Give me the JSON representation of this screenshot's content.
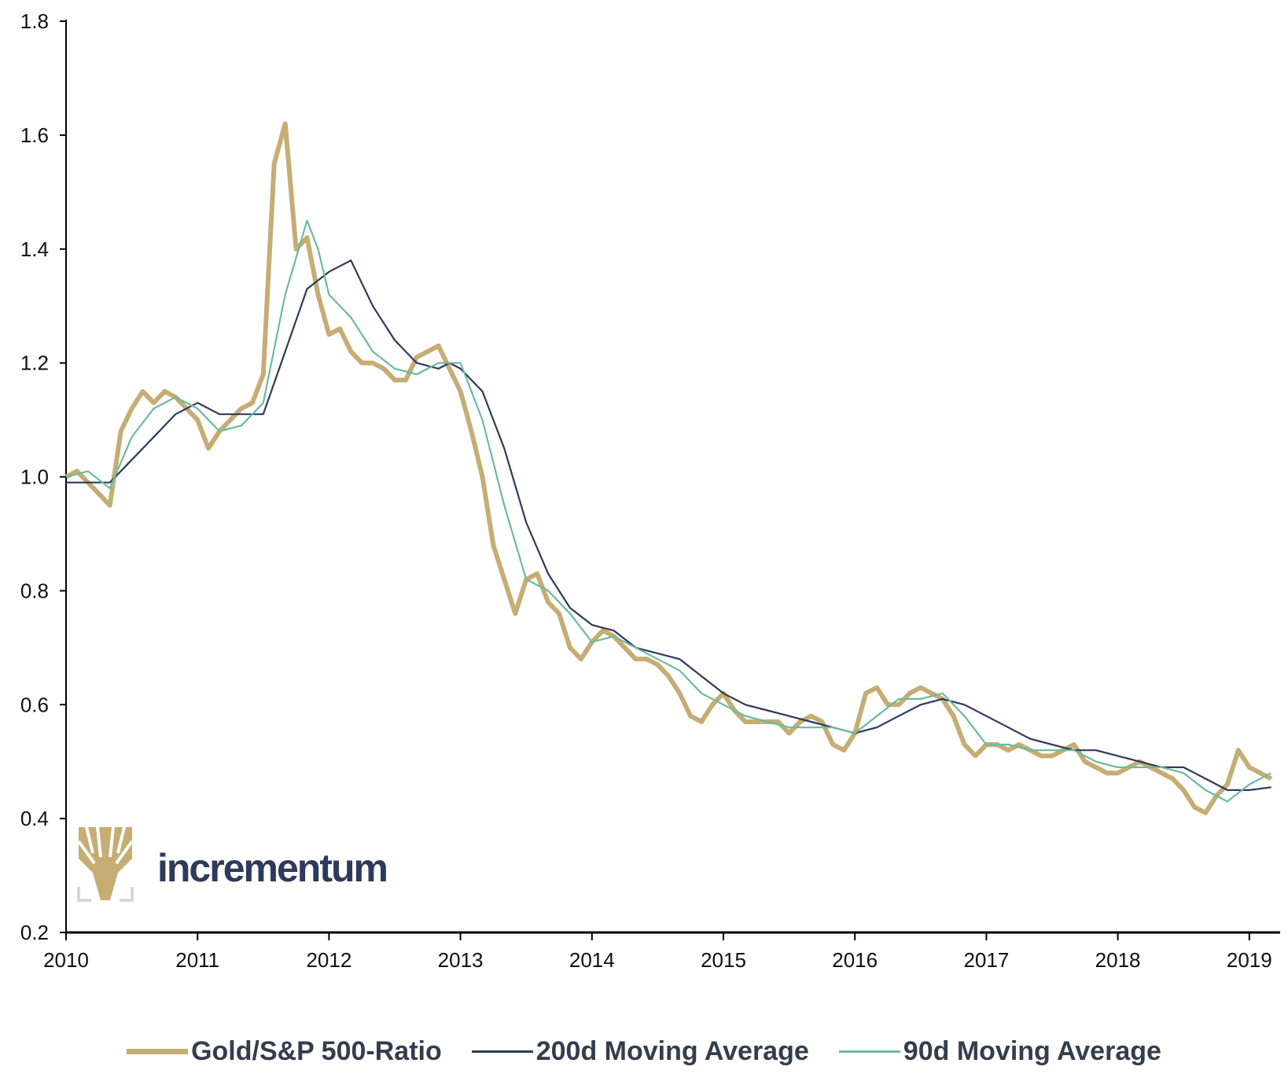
{
  "chart_data": {
    "type": "line",
    "title": "",
    "xlabel": "",
    "ylabel": "",
    "xlim": [
      "2010-01",
      "2019-03"
    ],
    "ylim": [
      0.2,
      1.8
    ],
    "yticks": [
      "0.2",
      "0.4",
      "0.6",
      "0.8",
      "1.0",
      "1.2",
      "1.4",
      "1.6",
      "1.8"
    ],
    "xticks": [
      "2010",
      "2011",
      "2012",
      "2013",
      "2014",
      "2015",
      "2016",
      "2017",
      "2018",
      "2019"
    ],
    "grid": false,
    "legend_placement": "bottom",
    "series": [
      {
        "name": "Gold/S&P 500-Ratio",
        "color": "#c5ad74",
        "x": [
          "2010-01",
          "2010-02",
          "2010-03",
          "2010-04",
          "2010-05",
          "2010-06",
          "2010-07",
          "2010-08",
          "2010-09",
          "2010-10",
          "2010-11",
          "2010-12",
          "2011-01",
          "2011-02",
          "2011-03",
          "2011-04",
          "2011-05",
          "2011-06",
          "2011-07",
          "2011-08",
          "2011-09",
          "2011-10",
          "2011-11",
          "2011-12",
          "2012-01",
          "2012-02",
          "2012-03",
          "2012-04",
          "2012-05",
          "2012-06",
          "2012-07",
          "2012-08",
          "2012-09",
          "2012-10",
          "2012-11",
          "2012-12",
          "2013-01",
          "2013-02",
          "2013-03",
          "2013-04",
          "2013-05",
          "2013-06",
          "2013-07",
          "2013-08",
          "2013-09",
          "2013-10",
          "2013-11",
          "2013-12",
          "2014-01",
          "2014-02",
          "2014-03",
          "2014-04",
          "2014-05",
          "2014-06",
          "2014-07",
          "2014-08",
          "2014-09",
          "2014-10",
          "2014-11",
          "2014-12",
          "2015-01",
          "2015-02",
          "2015-03",
          "2015-04",
          "2015-05",
          "2015-06",
          "2015-07",
          "2015-08",
          "2015-09",
          "2015-10",
          "2015-11",
          "2015-12",
          "2016-01",
          "2016-02",
          "2016-03",
          "2016-04",
          "2016-05",
          "2016-06",
          "2016-07",
          "2016-08",
          "2016-09",
          "2016-10",
          "2016-11",
          "2016-12",
          "2017-01",
          "2017-02",
          "2017-03",
          "2017-04",
          "2017-05",
          "2017-06",
          "2017-07",
          "2017-08",
          "2017-09",
          "2017-10",
          "2017-11",
          "2017-12",
          "2018-01",
          "2018-02",
          "2018-03",
          "2018-04",
          "2018-05",
          "2018-06",
          "2018-07",
          "2018-08",
          "2018-09",
          "2018-10",
          "2018-11",
          "2018-12",
          "2019-01",
          "2019-02",
          "2019-03"
        ],
        "values": [
          1.0,
          1.01,
          0.99,
          0.97,
          0.95,
          1.08,
          1.12,
          1.15,
          1.13,
          1.15,
          1.14,
          1.12,
          1.1,
          1.05,
          1.08,
          1.1,
          1.12,
          1.13,
          1.18,
          1.55,
          1.62,
          1.4,
          1.42,
          1.32,
          1.25,
          1.26,
          1.22,
          1.2,
          1.2,
          1.19,
          1.17,
          1.17,
          1.21,
          1.22,
          1.23,
          1.19,
          1.15,
          1.08,
          1.0,
          0.88,
          0.82,
          0.76,
          0.82,
          0.83,
          0.78,
          0.76,
          0.7,
          0.68,
          0.71,
          0.73,
          0.72,
          0.7,
          0.68,
          0.68,
          0.67,
          0.65,
          0.62,
          0.58,
          0.57,
          0.6,
          0.62,
          0.59,
          0.57,
          0.57,
          0.57,
          0.57,
          0.55,
          0.57,
          0.58,
          0.57,
          0.53,
          0.52,
          0.55,
          0.62,
          0.63,
          0.6,
          0.6,
          0.62,
          0.63,
          0.62,
          0.61,
          0.58,
          0.53,
          0.51,
          0.53,
          0.53,
          0.52,
          0.53,
          0.52,
          0.51,
          0.51,
          0.52,
          0.53,
          0.5,
          0.49,
          0.48,
          0.48,
          0.49,
          0.5,
          0.49,
          0.48,
          0.47,
          0.45,
          0.42,
          0.41,
          0.44,
          0.46,
          0.52,
          0.49,
          0.48,
          0.47
        ]
      },
      {
        "name": "200d Moving Average",
        "color": "#2e3a5c",
        "x": [
          "2010-01",
          "2010-03",
          "2010-05",
          "2010-07",
          "2010-09",
          "2010-11",
          "2011-01",
          "2011-03",
          "2011-05",
          "2011-07",
          "2011-09",
          "2011-11",
          "2012-01",
          "2012-03",
          "2012-05",
          "2012-07",
          "2012-09",
          "2012-11",
          "2012-12",
          "2013-01",
          "2013-03",
          "2013-05",
          "2013-07",
          "2013-09",
          "2013-11",
          "2014-01",
          "2014-03",
          "2014-05",
          "2014-07",
          "2014-09",
          "2014-11",
          "2015-01",
          "2015-03",
          "2015-05",
          "2015-07",
          "2015-09",
          "2015-11",
          "2016-01",
          "2016-03",
          "2016-05",
          "2016-07",
          "2016-09",
          "2016-11",
          "2017-01",
          "2017-03",
          "2017-05",
          "2017-07",
          "2017-09",
          "2017-11",
          "2018-01",
          "2018-03",
          "2018-05",
          "2018-07",
          "2018-09",
          "2018-11",
          "2019-01",
          "2019-03"
        ],
        "values": [
          0.99,
          0.99,
          0.99,
          1.03,
          1.07,
          1.11,
          1.13,
          1.11,
          1.11,
          1.11,
          1.22,
          1.33,
          1.36,
          1.38,
          1.3,
          1.24,
          1.2,
          1.19,
          1.2,
          1.19,
          1.15,
          1.05,
          0.92,
          0.83,
          0.77,
          0.74,
          0.73,
          0.7,
          0.69,
          0.68,
          0.65,
          0.62,
          0.6,
          0.59,
          0.58,
          0.57,
          0.56,
          0.55,
          0.56,
          0.58,
          0.6,
          0.61,
          0.6,
          0.58,
          0.56,
          0.54,
          0.53,
          0.52,
          0.52,
          0.51,
          0.5,
          0.49,
          0.49,
          0.47,
          0.45,
          0.45,
          0.455
        ]
      },
      {
        "name": "90d Moving Average",
        "color": "#6dbb9c",
        "x": [
          "2010-01",
          "2010-03",
          "2010-05",
          "2010-07",
          "2010-09",
          "2010-11",
          "2011-01",
          "2011-03",
          "2011-05",
          "2011-07",
          "2011-09",
          "2011-11",
          "2011-12",
          "2012-01",
          "2012-03",
          "2012-05",
          "2012-07",
          "2012-09",
          "2012-11",
          "2013-01",
          "2013-03",
          "2013-05",
          "2013-07",
          "2013-09",
          "2013-11",
          "2014-01",
          "2014-03",
          "2014-05",
          "2014-07",
          "2014-09",
          "2014-11",
          "2015-01",
          "2015-03",
          "2015-05",
          "2015-07",
          "2015-09",
          "2015-11",
          "2016-01",
          "2016-03",
          "2016-05",
          "2016-07",
          "2016-09",
          "2016-11",
          "2017-01",
          "2017-03",
          "2017-05",
          "2017-07",
          "2017-09",
          "2017-11",
          "2018-01",
          "2018-03",
          "2018-05",
          "2018-07",
          "2018-09",
          "2018-11",
          "2019-01",
          "2019-03"
        ],
        "values": [
          1.0,
          1.01,
          0.98,
          1.07,
          1.12,
          1.14,
          1.12,
          1.08,
          1.09,
          1.13,
          1.32,
          1.45,
          1.4,
          1.32,
          1.28,
          1.22,
          1.19,
          1.18,
          1.2,
          1.2,
          1.1,
          0.95,
          0.82,
          0.8,
          0.76,
          0.71,
          0.72,
          0.7,
          0.68,
          0.66,
          0.62,
          0.6,
          0.58,
          0.57,
          0.56,
          0.56,
          0.56,
          0.55,
          0.58,
          0.61,
          0.61,
          0.62,
          0.58,
          0.53,
          0.53,
          0.52,
          0.52,
          0.52,
          0.5,
          0.49,
          0.49,
          0.49,
          0.48,
          0.45,
          0.43,
          0.46,
          0.48
        ]
      }
    ]
  },
  "logo": {
    "text": "incrementum",
    "color": "#c5ad74"
  }
}
